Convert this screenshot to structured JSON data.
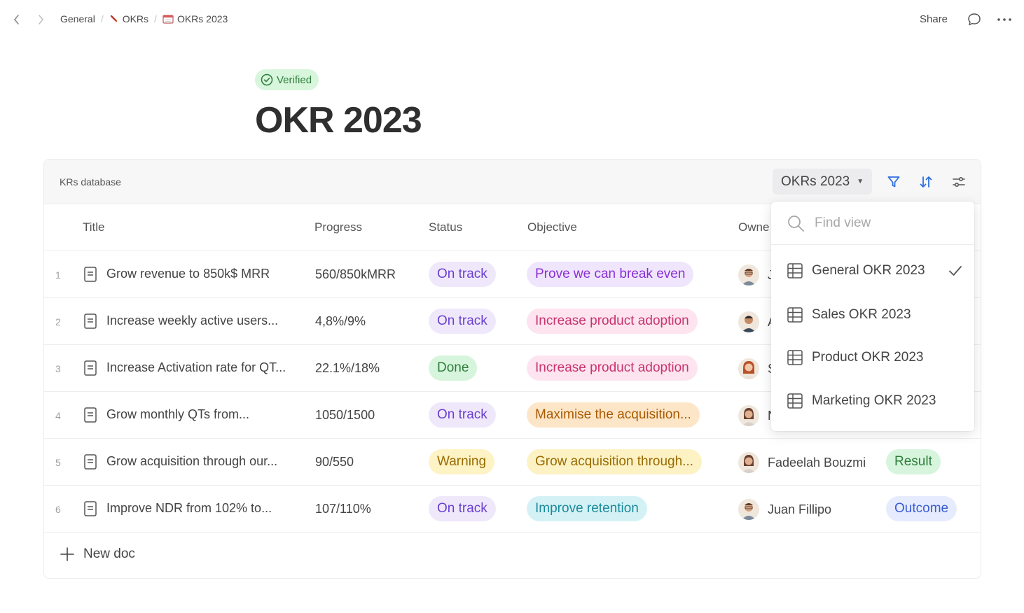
{
  "breadcrumb": [
    {
      "label": "General",
      "icon": ""
    },
    {
      "label": "OKRs",
      "icon": "rocket-icon"
    },
    {
      "label": "OKRs 2023",
      "icon": "calendar-icon"
    }
  ],
  "topbar": {
    "share_label": "Share"
  },
  "header": {
    "badge": "Verified",
    "title": "OKR 2023"
  },
  "database": {
    "name": "KRs database",
    "view_selected": "OKRs 2023",
    "columns": [
      "Title",
      "Progress",
      "Status",
      "Objective",
      "Owne"
    ],
    "rows": [
      {
        "num": "1",
        "title": "Grow revenue to 850k$ MRR",
        "progress": "560/850kMRR",
        "status": "On track",
        "objective": "Prove we can break even",
        "owner": "J",
        "type": ""
      },
      {
        "num": "2",
        "title": "Increase weekly active users...",
        "progress": "4,8%/9%",
        "status": "On track",
        "objective": "Increase product adoption",
        "owner": "A",
        "type": ""
      },
      {
        "num": "3",
        "title": "Increase Activation rate for QT...",
        "progress": "22.1%/18%",
        "status": "Done",
        "objective": "Increase product adoption",
        "owner": "S",
        "type": ""
      },
      {
        "num": "4",
        "title": "Grow monthly QTs from...",
        "progress": "1050/1500",
        "status": "On track",
        "objective": "Maximise the acquisition...",
        "owner": "N",
        "type": ""
      },
      {
        "num": "5",
        "title": "Grow acquisition through our...",
        "progress": "90/550",
        "status": "Warning",
        "objective": "Grow acquisition through...",
        "owner": "Fadeelah Bouzmi",
        "type": "Result"
      },
      {
        "num": "6",
        "title": "Improve NDR from 102% to...",
        "progress": "107/110%",
        "status": "On track",
        "objective": "Improve retention",
        "owner": "Juan Fillipo",
        "type": "Outcome"
      }
    ],
    "new_doc_label": "New doc"
  },
  "dropdown": {
    "search_placeholder": "Find view",
    "views": [
      "General OKR 2023",
      "Sales OKR 2023",
      "Product OKR 2023",
      "Marketing OKR 2023"
    ],
    "checked": "General OKR 2023"
  },
  "colors": {
    "status_on_track_bg": "#efe8fb",
    "status_on_track_fg": "#6b3fd0",
    "status_done_bg": "#d6f5dc",
    "status_done_fg": "#2e7d3b",
    "status_warning_bg": "#fdf3c4",
    "status_warning_fg": "#9a6b00",
    "obj_purple_bg": "#efe5fd",
    "obj_purple_fg": "#8a2fd4",
    "obj_pink_bg": "#fde4ef",
    "obj_pink_fg": "#c8336e",
    "obj_orange_bg": "#fde6c8",
    "obj_orange_fg": "#a85a00",
    "obj_yellow_bg": "#fdf2c4",
    "obj_yellow_fg": "#9a6b00",
    "obj_teal_bg": "#d4f2f6",
    "obj_teal_fg": "#1a8a9a",
    "type_result_bg": "#d6f5dc",
    "type_result_fg": "#2e7d3b",
    "type_outcome_bg": "#e6ecfd",
    "type_outcome_fg": "#3a5cd6",
    "accent_blue": "#2f6fe0"
  }
}
